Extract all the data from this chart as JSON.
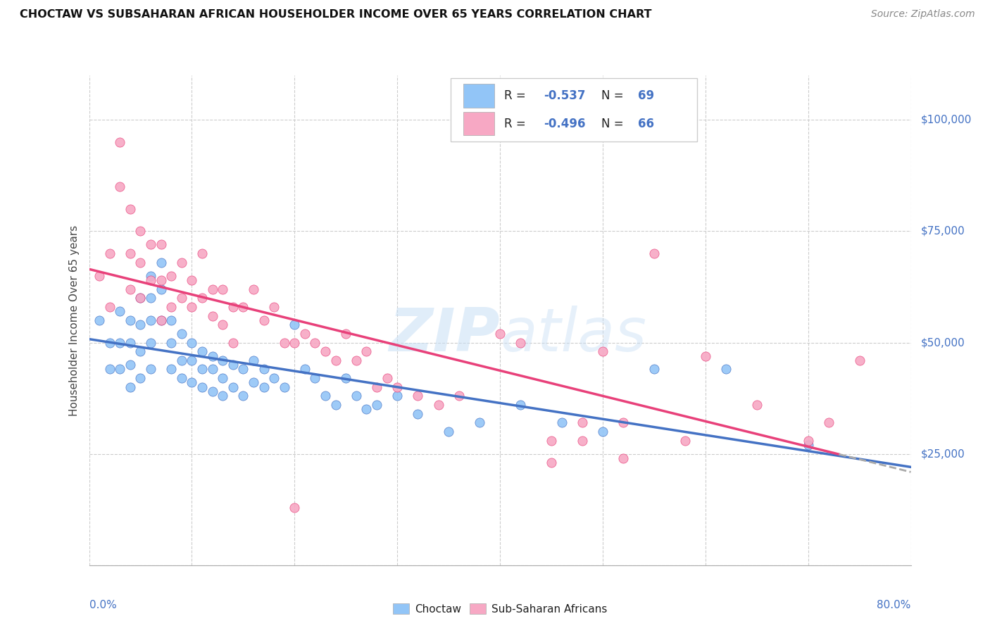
{
  "title": "CHOCTAW VS SUBSAHARAN AFRICAN HOUSEHOLDER INCOME OVER 65 YEARS CORRELATION CHART",
  "source": "Source: ZipAtlas.com",
  "ylabel": "Householder Income Over 65 years",
  "x_range": [
    0.0,
    0.8
  ],
  "y_range": [
    0,
    110000
  ],
  "y_ticks": [
    0,
    25000,
    50000,
    75000,
    100000
  ],
  "y_tick_labels": [
    "",
    "$25,000",
    "$50,000",
    "$75,000",
    "$100,000"
  ],
  "choctaw_color": "#92C5F7",
  "subsaharan_color": "#F7A8C4",
  "choctaw_line_color": "#4472C4",
  "subsaharan_line_color": "#E8417A",
  "choctaw_label": "Choctaw",
  "subsaharan_label": "Sub-Saharan Africans",
  "watermark": "ZIPatlas",
  "background_color": "#FFFFFF",
  "grid_color": "#CCCCCC",
  "choctaw_scatter_x": [
    0.01,
    0.02,
    0.02,
    0.03,
    0.03,
    0.03,
    0.04,
    0.04,
    0.04,
    0.04,
    0.05,
    0.05,
    0.05,
    0.05,
    0.06,
    0.06,
    0.06,
    0.06,
    0.06,
    0.07,
    0.07,
    0.07,
    0.08,
    0.08,
    0.08,
    0.09,
    0.09,
    0.09,
    0.1,
    0.1,
    0.1,
    0.11,
    0.11,
    0.11,
    0.12,
    0.12,
    0.12,
    0.13,
    0.13,
    0.13,
    0.14,
    0.14,
    0.15,
    0.15,
    0.16,
    0.16,
    0.17,
    0.17,
    0.18,
    0.19,
    0.2,
    0.21,
    0.22,
    0.23,
    0.24,
    0.25,
    0.26,
    0.27,
    0.28,
    0.3,
    0.32,
    0.35,
    0.38,
    0.42,
    0.46,
    0.5,
    0.55,
    0.62,
    0.7
  ],
  "choctaw_scatter_y": [
    55000,
    50000,
    44000,
    57000,
    50000,
    44000,
    55000,
    50000,
    45000,
    40000,
    60000,
    54000,
    48000,
    42000,
    65000,
    60000,
    55000,
    50000,
    44000,
    68000,
    62000,
    55000,
    55000,
    50000,
    44000,
    52000,
    46000,
    42000,
    50000,
    46000,
    41000,
    48000,
    44000,
    40000,
    47000,
    44000,
    39000,
    46000,
    42000,
    38000,
    45000,
    40000,
    44000,
    38000,
    46000,
    41000,
    44000,
    40000,
    42000,
    40000,
    54000,
    44000,
    42000,
    38000,
    36000,
    42000,
    38000,
    35000,
    36000,
    38000,
    34000,
    30000,
    32000,
    36000,
    32000,
    30000,
    44000,
    44000,
    27000
  ],
  "subsaharan_scatter_x": [
    0.01,
    0.02,
    0.02,
    0.03,
    0.03,
    0.04,
    0.04,
    0.04,
    0.05,
    0.05,
    0.05,
    0.06,
    0.06,
    0.07,
    0.07,
    0.07,
    0.08,
    0.08,
    0.09,
    0.09,
    0.1,
    0.1,
    0.11,
    0.11,
    0.12,
    0.12,
    0.13,
    0.13,
    0.14,
    0.14,
    0.15,
    0.16,
    0.17,
    0.18,
    0.19,
    0.2,
    0.21,
    0.22,
    0.23,
    0.24,
    0.25,
    0.26,
    0.27,
    0.28,
    0.29,
    0.3,
    0.32,
    0.34,
    0.36,
    0.4,
    0.42,
    0.45,
    0.48,
    0.5,
    0.52,
    0.55,
    0.58,
    0.6,
    0.65,
    0.7,
    0.72,
    0.75,
    0.2,
    0.45,
    0.48,
    0.52
  ],
  "subsaharan_scatter_y": [
    65000,
    70000,
    58000,
    95000,
    85000,
    80000,
    70000,
    62000,
    75000,
    68000,
    60000,
    72000,
    64000,
    72000,
    64000,
    55000,
    65000,
    58000,
    68000,
    60000,
    64000,
    58000,
    70000,
    60000,
    62000,
    56000,
    62000,
    54000,
    58000,
    50000,
    58000,
    62000,
    55000,
    58000,
    50000,
    50000,
    52000,
    50000,
    48000,
    46000,
    52000,
    46000,
    48000,
    40000,
    42000,
    40000,
    38000,
    36000,
    38000,
    52000,
    50000,
    28000,
    32000,
    48000,
    32000,
    70000,
    28000,
    47000,
    36000,
    28000,
    32000,
    46000,
    13000,
    23000,
    28000,
    24000
  ]
}
